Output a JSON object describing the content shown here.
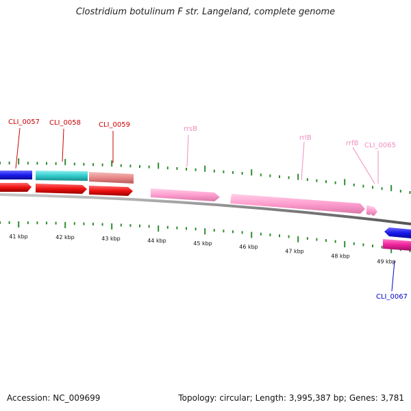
{
  "header": {
    "title": "Clostridium botulinum F str. Langeland, complete genome"
  },
  "footer": {
    "accession": "Accession: NC_009699",
    "summary": "Topology: circular; Length: 3,995,387 bp; Genes: 3,781"
  },
  "colors": {
    "backbone": "#8c8c8c",
    "tick": "#2e8b2e",
    "blue": "#1a1aee",
    "cyan": "#33cccc",
    "salmon": "#e88888",
    "red": "#ee1111",
    "pink": "#ff9ecf",
    "magenta": "#ee2299",
    "label_red": "#cc0000",
    "label_pink": "#f08cc0",
    "label_blue": "#0000cc"
  },
  "scale": {
    "labels": [
      "41 kbp",
      "42 kbp",
      "43 kbp",
      "44 kbp",
      "45 kbp",
      "46 kbp",
      "47 kbp",
      "48 kbp",
      "49 kbp"
    ]
  },
  "genes": [
    {
      "label": "CLI_0057",
      "color": "label_red"
    },
    {
      "label": "CLI_0058",
      "color": "label_red"
    },
    {
      "label": "CLI_0059",
      "color": "label_red"
    },
    {
      "label": "rrsB",
      "color": "label_pink"
    },
    {
      "label": "rrlB",
      "color": "label_pink"
    },
    {
      "label": "rrfB",
      "color": "label_pink"
    },
    {
      "label": "CLI_0065",
      "color": "label_pink"
    },
    {
      "label": "CLI_0067",
      "color": "label_blue"
    }
  ]
}
